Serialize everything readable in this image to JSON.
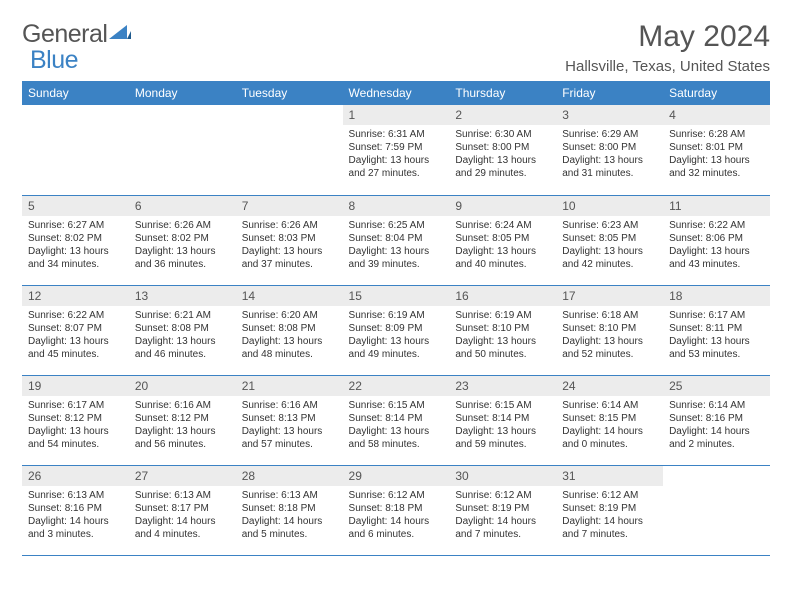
{
  "logo": {
    "text1": "General",
    "text2": "Blue"
  },
  "title": "May 2024",
  "location": "Hallsville, Texas, United States",
  "colors": {
    "header_bg": "#3b82c4",
    "header_text": "#ffffff",
    "daynum_bg": "#ececec",
    "text": "#333333",
    "border": "#3b82c4"
  },
  "days_of_week": [
    "Sunday",
    "Monday",
    "Tuesday",
    "Wednesday",
    "Thursday",
    "Friday",
    "Saturday"
  ],
  "weeks": [
    [
      {
        "blank": true
      },
      {
        "blank": true
      },
      {
        "blank": true
      },
      {
        "num": "1",
        "sunrise": "6:31 AM",
        "sunset": "7:59 PM",
        "daylight": "13 hours and 27 minutes."
      },
      {
        "num": "2",
        "sunrise": "6:30 AM",
        "sunset": "8:00 PM",
        "daylight": "13 hours and 29 minutes."
      },
      {
        "num": "3",
        "sunrise": "6:29 AM",
        "sunset": "8:00 PM",
        "daylight": "13 hours and 31 minutes."
      },
      {
        "num": "4",
        "sunrise": "6:28 AM",
        "sunset": "8:01 PM",
        "daylight": "13 hours and 32 minutes."
      }
    ],
    [
      {
        "num": "5",
        "sunrise": "6:27 AM",
        "sunset": "8:02 PM",
        "daylight": "13 hours and 34 minutes."
      },
      {
        "num": "6",
        "sunrise": "6:26 AM",
        "sunset": "8:02 PM",
        "daylight": "13 hours and 36 minutes."
      },
      {
        "num": "7",
        "sunrise": "6:26 AM",
        "sunset": "8:03 PM",
        "daylight": "13 hours and 37 minutes."
      },
      {
        "num": "8",
        "sunrise": "6:25 AM",
        "sunset": "8:04 PM",
        "daylight": "13 hours and 39 minutes."
      },
      {
        "num": "9",
        "sunrise": "6:24 AM",
        "sunset": "8:05 PM",
        "daylight": "13 hours and 40 minutes."
      },
      {
        "num": "10",
        "sunrise": "6:23 AM",
        "sunset": "8:05 PM",
        "daylight": "13 hours and 42 minutes."
      },
      {
        "num": "11",
        "sunrise": "6:22 AM",
        "sunset": "8:06 PM",
        "daylight": "13 hours and 43 minutes."
      }
    ],
    [
      {
        "num": "12",
        "sunrise": "6:22 AM",
        "sunset": "8:07 PM",
        "daylight": "13 hours and 45 minutes."
      },
      {
        "num": "13",
        "sunrise": "6:21 AM",
        "sunset": "8:08 PM",
        "daylight": "13 hours and 46 minutes."
      },
      {
        "num": "14",
        "sunrise": "6:20 AM",
        "sunset": "8:08 PM",
        "daylight": "13 hours and 48 minutes."
      },
      {
        "num": "15",
        "sunrise": "6:19 AM",
        "sunset": "8:09 PM",
        "daylight": "13 hours and 49 minutes."
      },
      {
        "num": "16",
        "sunrise": "6:19 AM",
        "sunset": "8:10 PM",
        "daylight": "13 hours and 50 minutes."
      },
      {
        "num": "17",
        "sunrise": "6:18 AM",
        "sunset": "8:10 PM",
        "daylight": "13 hours and 52 minutes."
      },
      {
        "num": "18",
        "sunrise": "6:17 AM",
        "sunset": "8:11 PM",
        "daylight": "13 hours and 53 minutes."
      }
    ],
    [
      {
        "num": "19",
        "sunrise": "6:17 AM",
        "sunset": "8:12 PM",
        "daylight": "13 hours and 54 minutes."
      },
      {
        "num": "20",
        "sunrise": "6:16 AM",
        "sunset": "8:12 PM",
        "daylight": "13 hours and 56 minutes."
      },
      {
        "num": "21",
        "sunrise": "6:16 AM",
        "sunset": "8:13 PM",
        "daylight": "13 hours and 57 minutes."
      },
      {
        "num": "22",
        "sunrise": "6:15 AM",
        "sunset": "8:14 PM",
        "daylight": "13 hours and 58 minutes."
      },
      {
        "num": "23",
        "sunrise": "6:15 AM",
        "sunset": "8:14 PM",
        "daylight": "13 hours and 59 minutes."
      },
      {
        "num": "24",
        "sunrise": "6:14 AM",
        "sunset": "8:15 PM",
        "daylight": "14 hours and 0 minutes."
      },
      {
        "num": "25",
        "sunrise": "6:14 AM",
        "sunset": "8:16 PM",
        "daylight": "14 hours and 2 minutes."
      }
    ],
    [
      {
        "num": "26",
        "sunrise": "6:13 AM",
        "sunset": "8:16 PM",
        "daylight": "14 hours and 3 minutes."
      },
      {
        "num": "27",
        "sunrise": "6:13 AM",
        "sunset": "8:17 PM",
        "daylight": "14 hours and 4 minutes."
      },
      {
        "num": "28",
        "sunrise": "6:13 AM",
        "sunset": "8:18 PM",
        "daylight": "14 hours and 5 minutes."
      },
      {
        "num": "29",
        "sunrise": "6:12 AM",
        "sunset": "8:18 PM",
        "daylight": "14 hours and 6 minutes."
      },
      {
        "num": "30",
        "sunrise": "6:12 AM",
        "sunset": "8:19 PM",
        "daylight": "14 hours and 7 minutes."
      },
      {
        "num": "31",
        "sunrise": "6:12 AM",
        "sunset": "8:19 PM",
        "daylight": "14 hours and 7 minutes."
      },
      {
        "blank": true
      }
    ]
  ]
}
